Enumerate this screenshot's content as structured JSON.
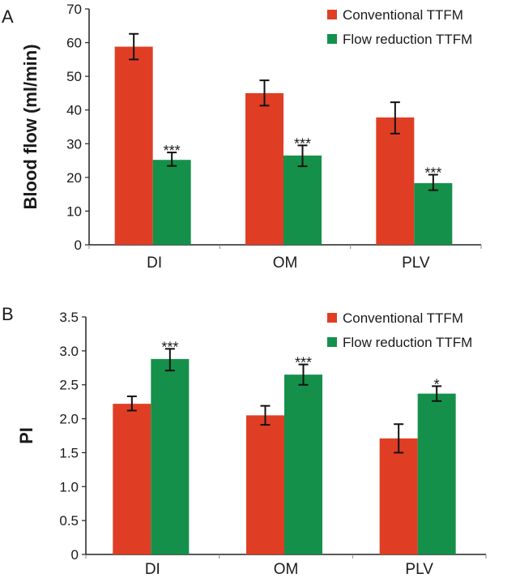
{
  "chart_data": [
    {
      "panel_label": "A",
      "type": "bar",
      "title": "",
      "xlabel": "",
      "ylabel": "Blood flow (ml/min)",
      "ylim": [
        0,
        70
      ],
      "yticks": [
        0,
        10,
        20,
        30,
        40,
        50,
        60,
        70
      ],
      "ytick_labels": [
        "0",
        "10",
        "20",
        "30",
        "40",
        "50",
        "60",
        "70"
      ],
      "categories": [
        "DI",
        "OM",
        "PLV"
      ],
      "legend_position": "top-right",
      "series": [
        {
          "name": "Conventional TTFM",
          "color": "#e03e24",
          "values": [
            58.8,
            45.0,
            37.8
          ],
          "err_low": [
            55.0,
            41.3,
            33.0
          ],
          "err_high": [
            62.6,
            48.8,
            42.3
          ],
          "annotations": [
            "",
            "",
            ""
          ]
        },
        {
          "name": "Flow reduction TTFM",
          "color": "#14904a",
          "values": [
            25.2,
            26.5,
            18.3
          ],
          "err_low": [
            23.4,
            23.3,
            16.2
          ],
          "err_high": [
            27.4,
            29.5,
            20.8
          ],
          "annotations": [
            "***",
            "***",
            "***"
          ]
        }
      ]
    },
    {
      "panel_label": "B",
      "type": "bar",
      "title": "",
      "xlabel": "",
      "ylabel": "PI",
      "ylim": [
        0,
        3.5
      ],
      "yticks": [
        0,
        0.5,
        1.0,
        1.5,
        2.0,
        2.5,
        3.0,
        3.5
      ],
      "ytick_labels": [
        "0",
        "0.5",
        "1.0",
        "1.5",
        "2.0",
        "2.5",
        "3.0",
        "3.5"
      ],
      "categories": [
        "DI",
        "OM",
        "PLV"
      ],
      "legend_position": "top-right",
      "series": [
        {
          "name": "Conventional TTFM",
          "color": "#e03e24",
          "values": [
            2.22,
            2.05,
            1.71
          ],
          "err_low": [
            2.12,
            1.91,
            1.5
          ],
          "err_high": [
            2.33,
            2.19,
            1.92
          ],
          "annotations": [
            "",
            "",
            ""
          ]
        },
        {
          "name": "Flow reduction TTFM",
          "color": "#14904a",
          "values": [
            2.88,
            2.65,
            2.37
          ],
          "err_low": [
            2.71,
            2.5,
            2.26
          ],
          "err_high": [
            3.03,
            2.8,
            2.48
          ],
          "annotations": [
            "***",
            "***",
            "*"
          ]
        }
      ]
    }
  ]
}
